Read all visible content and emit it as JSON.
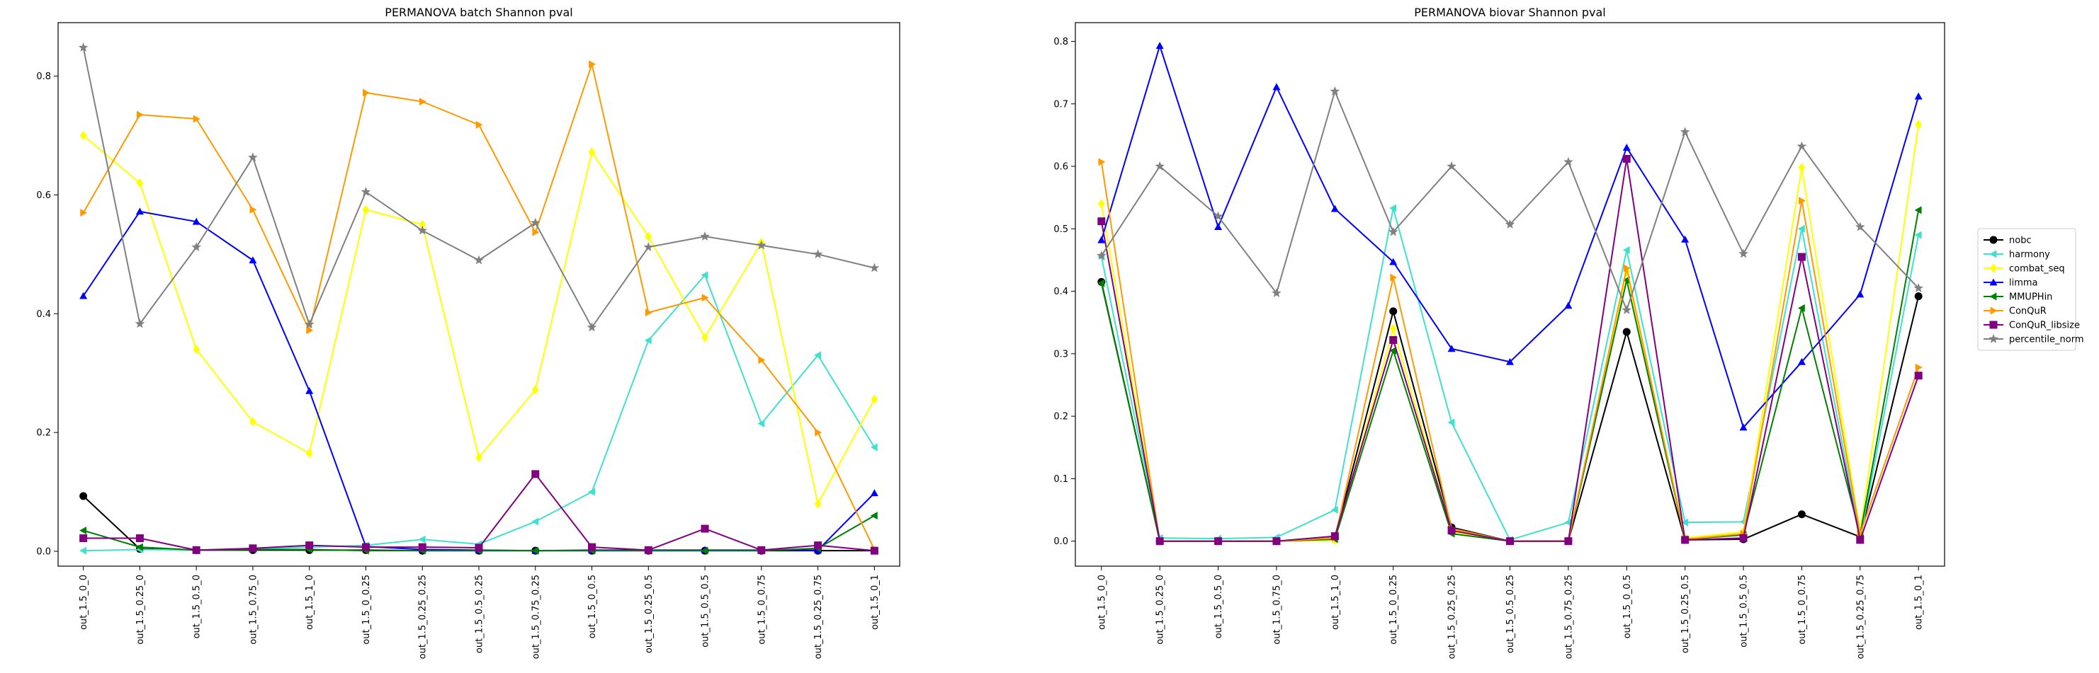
{
  "chart_data": [
    {
      "type": "line",
      "title": "PERMANOVA batch Shannon pval",
      "xlabel": "",
      "ylabel": "",
      "ylim": [
        -0.025,
        0.89
      ],
      "yticks": [
        0.0,
        0.2,
        0.4,
        0.6,
        0.8
      ],
      "categories": [
        "out_1.5_0_0",
        "out_1.5_0.25_0",
        "out_1.5_0.5_0",
        "out_1.5_0.75_0",
        "out_1.5_1_0",
        "out_1.5_0_0.25",
        "out_1.5_0.25_0.25",
        "out_1.5_0.5_0.25",
        "out_1.5_0.75_0.25",
        "out_1.5_0_0.5",
        "out_1.5_0.25_0.5",
        "out_1.5_0.5_0.5",
        "out_1.5_0_0.75",
        "out_1.5_0.25_0.75",
        "out_1.5_0_1"
      ],
      "series": [
        {
          "name": "nobc",
          "color": "#000000",
          "marker": "circle",
          "values": [
            0.093,
            0.004,
            0.002,
            0.002,
            0.002,
            0.002,
            0.001,
            0.001,
            0.001,
            0.001,
            0.001,
            0.001,
            0.001,
            0.001,
            0.001
          ]
        },
        {
          "name": "harmony",
          "color": "#40e0d0",
          "marker": "tri_left",
          "values": [
            0.001,
            0.003,
            0.002,
            0.004,
            0.007,
            0.01,
            0.02,
            0.012,
            0.05,
            0.1,
            0.355,
            0.465,
            0.215,
            0.33,
            0.175
          ]
        },
        {
          "name": "combat_seq",
          "color": "#ffff00",
          "marker": "diamond",
          "values": [
            0.7,
            0.62,
            0.34,
            0.218,
            0.165,
            0.575,
            0.55,
            0.158,
            0.272,
            0.672,
            0.53,
            0.36,
            0.52,
            0.08,
            0.256
          ]
        },
        {
          "name": "limma",
          "color": "#0000ff",
          "marker": "tri_up",
          "values": [
            0.43,
            0.572,
            0.555,
            0.49,
            0.27,
            0.008,
            0.003,
            0.002,
            0.001,
            0.002,
            0.002,
            0.002,
            0.002,
            0.002,
            0.098
          ]
        },
        {
          "name": "MMUPHin",
          "color": "#008000",
          "marker": "tri_left",
          "values": [
            0.035,
            0.007,
            0.002,
            0.003,
            0.003,
            0.001,
            0.001,
            0.001,
            0.001,
            0.001,
            0.001,
            0.001,
            0.001,
            0.005,
            0.06
          ]
        },
        {
          "name": "ConQuR",
          "color": "#ff9900",
          "marker": "tri_right",
          "values": [
            0.57,
            0.735,
            0.728,
            0.575,
            0.372,
            0.772,
            0.757,
            0.718,
            0.537,
            0.82,
            0.402,
            0.427,
            0.322,
            0.2,
            0.003
          ]
        },
        {
          "name": "ConQuR_libsize",
          "color": "#800080",
          "marker": "square",
          "values": [
            0.022,
            0.022,
            0.002,
            0.005,
            0.01,
            0.007,
            0.007,
            0.006,
            0.13,
            0.007,
            0.002,
            0.038,
            0.002,
            0.01,
            0.001
          ]
        },
        {
          "name": "percentile_norm",
          "color": "#808080",
          "marker": "star",
          "values": [
            0.848,
            0.383,
            0.512,
            0.663,
            0.382,
            0.605,
            0.54,
            0.49,
            0.553,
            0.377,
            0.512,
            0.53,
            0.515,
            0.5,
            0.477
          ]
        }
      ]
    },
    {
      "type": "line",
      "title": "PERMANOVA biovar Shannon pval",
      "xlabel": "",
      "ylabel": "",
      "ylim": [
        -0.04,
        0.83
      ],
      "yticks": [
        0.0,
        0.1,
        0.2,
        0.3,
        0.4,
        0.5,
        0.6,
        0.7,
        0.8
      ],
      "categories": [
        "out_1.5_0_0",
        "out_1.5_0.25_0",
        "out_1.5_0.5_0",
        "out_1.5_0.75_0",
        "out_1.5_1_0",
        "out_1.5_0_0.25",
        "out_1.5_0.25_0.25",
        "out_1.5_0.5_0.25",
        "out_1.5_0.75_0.25",
        "out_1.5_0_0.5",
        "out_1.5_0.25_0.5",
        "out_1.5_0.5_0.5",
        "out_1.5_0_0.75",
        "out_1.5_0.25_0.75",
        "out_1.5_0_1"
      ],
      "legend": "outside-right",
      "series": [
        {
          "name": "nobc",
          "color": "#000000",
          "marker": "circle",
          "values": [
            0.415,
            0.0,
            0.0,
            0.0,
            0.005,
            0.368,
            0.022,
            0.0,
            0.0,
            0.335,
            0.002,
            0.003,
            0.043,
            0.007,
            0.392
          ]
        },
        {
          "name": "harmony",
          "color": "#40e0d0",
          "marker": "tri_left",
          "values": [
            0.455,
            0.005,
            0.004,
            0.006,
            0.05,
            0.533,
            0.19,
            0.002,
            0.03,
            0.466,
            0.03,
            0.031,
            0.5,
            0.004,
            0.49
          ]
        },
        {
          "name": "combat_seq",
          "color": "#ffff00",
          "marker": "diamond",
          "values": [
            0.54,
            0.0,
            0.0,
            0.0,
            0.001,
            0.34,
            0.015,
            0.0,
            0.0,
            0.432,
            0.005,
            0.015,
            0.598,
            0.015,
            0.667
          ]
        },
        {
          "name": "limma",
          "color": "#0000ff",
          "marker": "tri_up",
          "values": [
            0.482,
            0.793,
            0.503,
            0.727,
            0.532,
            0.447,
            0.308,
            0.287,
            0.377,
            0.63,
            0.483,
            0.182,
            0.287,
            0.395,
            0.712
          ]
        },
        {
          "name": "MMUPHin",
          "color": "#008000",
          "marker": "tri_left",
          "values": [
            0.413,
            0.0,
            0.0,
            0.0,
            0.003,
            0.305,
            0.012,
            0.0,
            0.0,
            0.418,
            0.003,
            0.01,
            0.373,
            0.01,
            0.53
          ]
        },
        {
          "name": "ConQuR",
          "color": "#ff9900",
          "marker": "tri_right",
          "values": [
            0.607,
            0.0,
            0.0,
            0.0,
            0.005,
            0.422,
            0.02,
            0.0,
            0.0,
            0.437,
            0.003,
            0.012,
            0.545,
            0.012,
            0.278
          ]
        },
        {
          "name": "ConQuR_libsize",
          "color": "#800080",
          "marker": "square",
          "values": [
            0.512,
            0.0,
            0.0,
            0.0,
            0.008,
            0.322,
            0.017,
            0.0,
            0.0,
            0.612,
            0.002,
            0.005,
            0.455,
            0.002,
            0.265
          ]
        },
        {
          "name": "percentile_norm",
          "color": "#808080",
          "marker": "star",
          "values": [
            0.457,
            0.6,
            0.52,
            0.397,
            0.72,
            0.495,
            0.6,
            0.507,
            0.607,
            0.37,
            0.655,
            0.46,
            0.632,
            0.503,
            0.405
          ]
        }
      ]
    }
  ]
}
